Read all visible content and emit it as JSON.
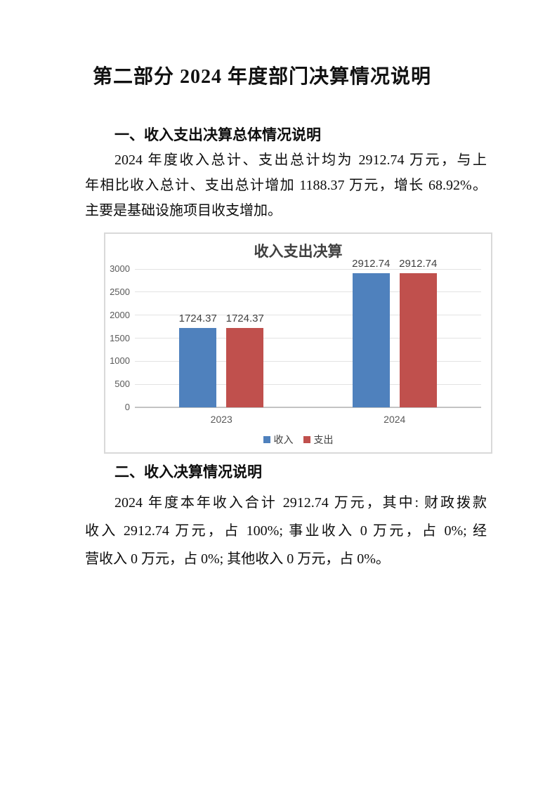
{
  "document": {
    "title": "第二部分 2024 年度部门决算情况说明",
    "sections": [
      {
        "heading": "一、收入支出决算总体情况说明",
        "lines": [
          "2024 年度收入总计、支出总计均为 2912.74 万元，与上",
          "年相比收入总计、支出总计增加 1188.37 万元，增长 68.92%。",
          "主要是基础设施项目收支增加。"
        ]
      },
      {
        "heading": "二、收入决算情况说明",
        "lines": [
          "2024 年度本年收入合计 2912.74 万元，其中: 财政拨款",
          "收入 2912.74 万元，占 100%; 事业收入 0 万元，占 0%; 经",
          "营收入 0 万元，占 0%; 其他收入 0 万元，占 0%。"
        ]
      }
    ]
  },
  "chart_data": {
    "type": "bar",
    "title": "收入支出决算",
    "categories": [
      "2023",
      "2024"
    ],
    "series": [
      {
        "name": "收入",
        "color": "#4F81BD",
        "values": [
          1724.37,
          2912.74
        ]
      },
      {
        "name": "支出",
        "color": "#C0504D",
        "values": [
          1724.37,
          2912.74
        ]
      }
    ],
    "ylim": [
      0,
      3000
    ],
    "yticks": [
      0,
      500,
      1000,
      1500,
      2000,
      2500,
      3000
    ],
    "grid": true,
    "legend_position": "bottom",
    "data_labels": true,
    "colors": {
      "gridline": "#E3E3E3",
      "axis_line": "#C3C3C3",
      "tick_text": "#595959",
      "label_text": "#404040",
      "frame_border": "#D9D9D9"
    }
  }
}
